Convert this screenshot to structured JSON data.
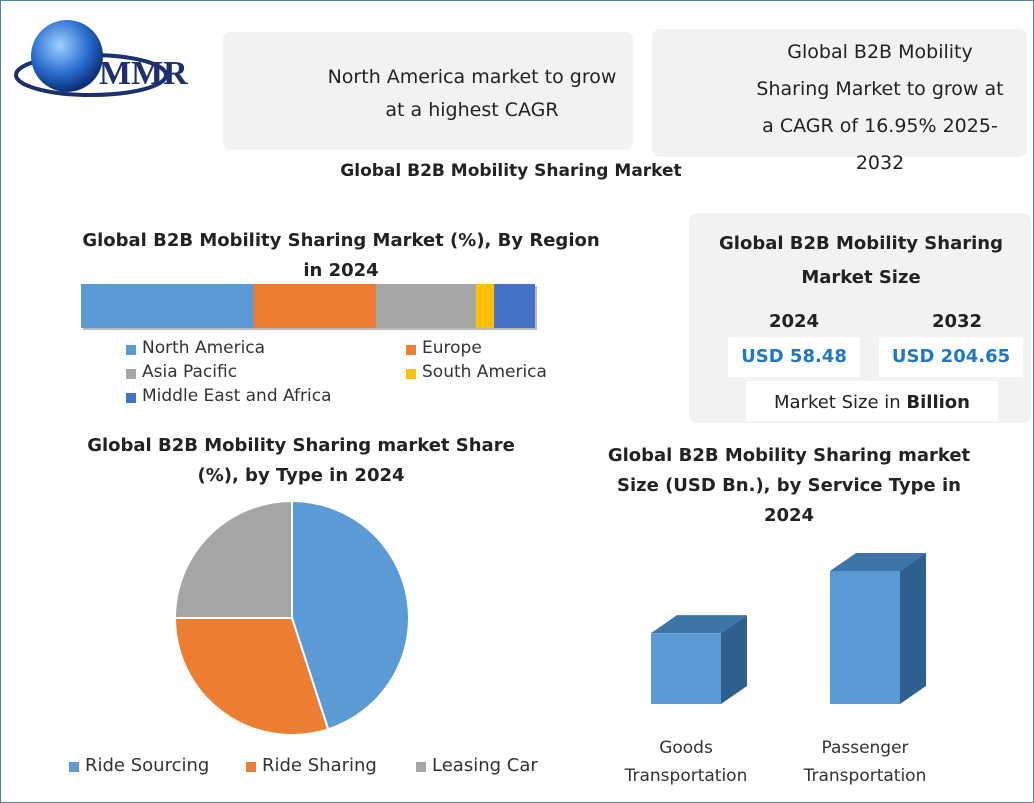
{
  "logo": "MMR",
  "callouts": [
    {
      "text": "North America market to grow at a highest CAGR"
    },
    {
      "text": "Global B2B Mobility Sharing Market to grow at a CAGR of 16.95% 2025-2032"
    }
  ],
  "title": "Global B2B Mobility Sharing Market",
  "market_size": {
    "title": "Global B2B Mobility Sharing Market Size",
    "columns": [
      {
        "year": "2024",
        "value": "USD 58.48"
      },
      {
        "year": "2032",
        "value": "USD 204.65"
      }
    ],
    "note": "Market Size in",
    "note_unit": "Billion"
  },
  "chart_data": [
    {
      "type": "stacked-bar",
      "title": "Global B2B Mobility Sharing Market (%), By Region in 2024",
      "series": [
        {
          "name": "North America",
          "color": "#5b9bd5",
          "values": [
            38
          ]
        },
        {
          "name": "Europe",
          "color": "#ed7d31",
          "values": [
            27
          ]
        },
        {
          "name": "Asia Pacific",
          "color": "#a5a5a5",
          "values": [
            22
          ]
        },
        {
          "name": "South America",
          "color": "#ffc000",
          "values": [
            4
          ]
        },
        {
          "name": "Middle East and Africa",
          "color": "#4472c4",
          "values": [
            9
          ]
        }
      ]
    },
    {
      "type": "pie",
      "title": "Global B2B Mobility Sharing market Share (%), by Type in 2024",
      "categories": [
        "Ride Sourcing",
        "Ride Sharing",
        "Leasing Car"
      ],
      "values": [
        45,
        30,
        25
      ],
      "colors": [
        "#5b9bd5",
        "#ed7d31",
        "#a5a5a5"
      ]
    },
    {
      "type": "bar3d",
      "title": "Global B2B Mobility Sharing market Size (USD Bn.), by Service Type in 2024",
      "categories": [
        "Goods Transportation",
        "Passenger Transportation"
      ],
      "values": [
        20.3,
        38.1
      ],
      "color": "#5b9bd5"
    }
  ]
}
